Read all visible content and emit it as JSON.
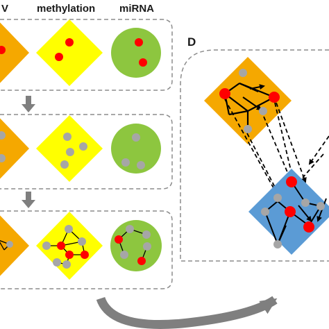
{
  "headers": {
    "cnv_partial": "V",
    "methylation": "methylation",
    "mirna": "miRNA"
  },
  "panel_d_label": "D",
  "colors": {
    "orange": "#f5a800",
    "yellow": "#ffff00",
    "green": "#8dc63f",
    "blue": "#5b9bd5",
    "red": "#ff0000",
    "gray": "#a6a6a6",
    "arrow_gray": "#7f7f7f",
    "box_border": "#8c8c8c"
  }
}
